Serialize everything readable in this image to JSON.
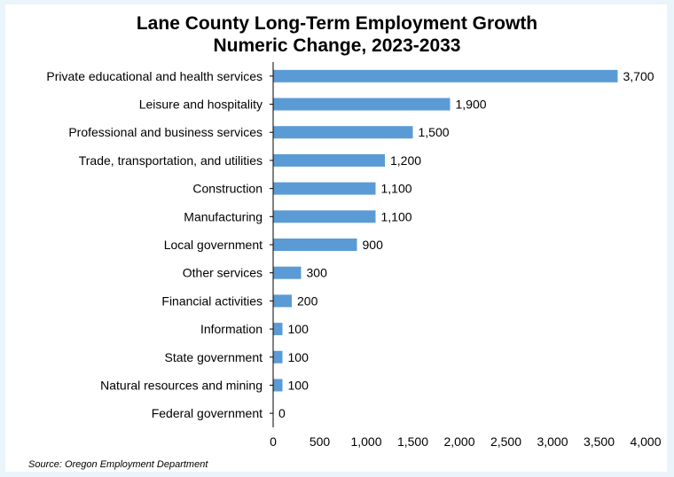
{
  "page": {
    "background": "#eaf4fb",
    "panel": "#ffffff"
  },
  "chart_data": {
    "type": "bar",
    "orientation": "horizontal",
    "title": "Lane County Long-Term Employment Growth",
    "subtitle": "Numeric Change, 2023-2033",
    "source": "Source: Oregon Employment Department",
    "bar_color": "#5b9bd5",
    "categories": [
      "Private educational and health services",
      "Leisure and hospitality",
      "Professional and business services",
      "Trade, transportation, and utilities",
      "Construction",
      "Manufacturing",
      "Local government",
      "Other services",
      "Financial activities",
      "Information",
      "State government",
      "Natural resources and mining",
      "Federal government"
    ],
    "values": [
      3700,
      1900,
      1500,
      1200,
      1100,
      1100,
      900,
      300,
      200,
      100,
      100,
      100,
      0
    ],
    "value_labels": [
      "3,700",
      "1,900",
      "1,500",
      "1,200",
      "1,100",
      "1,100",
      "900",
      "300",
      "200",
      "100",
      "100",
      "100",
      "0"
    ],
    "xlim": [
      0,
      4000
    ],
    "xticks": [
      "0",
      "500",
      "1,000",
      "1,500",
      "2,000",
      "2,500",
      "3,000",
      "3,500",
      "4,000"
    ],
    "grid": false,
    "legend": "none"
  }
}
